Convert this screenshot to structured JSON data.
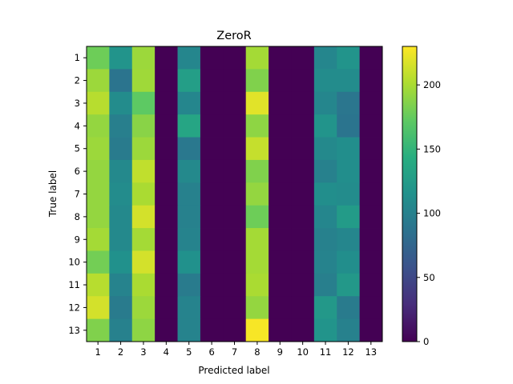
{
  "chart_data": {
    "type": "heatmap",
    "title": "ZeroR",
    "xlabel": "Predicted label",
    "ylabel": "True label",
    "x_categories": [
      "1",
      "2",
      "3",
      "4",
      "5",
      "6",
      "7",
      "8",
      "9",
      "10",
      "11",
      "12",
      "13"
    ],
    "y_categories": [
      "1",
      "2",
      "3",
      "4",
      "5",
      "6",
      "7",
      "8",
      "9",
      "10",
      "11",
      "12",
      "13"
    ],
    "colormap": "viridis",
    "value_range": [
      0,
      230
    ],
    "colorbar_ticks": [
      0,
      50,
      100,
      150,
      200
    ],
    "values": [
      [
        178,
        118,
        195,
        0,
        105,
        0,
        0,
        198,
        0,
        0,
        105,
        118,
        0
      ],
      [
        195,
        88,
        196,
        0,
        128,
        0,
        0,
        185,
        0,
        0,
        110,
        110,
        0
      ],
      [
        205,
        110,
        172,
        0,
        105,
        0,
        0,
        220,
        0,
        0,
        105,
        90,
        0
      ],
      [
        192,
        98,
        188,
        0,
        135,
        0,
        0,
        190,
        0,
        0,
        118,
        88,
        0
      ],
      [
        195,
        95,
        195,
        0,
        92,
        0,
        0,
        210,
        0,
        0,
        108,
        112,
        0
      ],
      [
        192,
        108,
        208,
        0,
        108,
        0,
        0,
        185,
        0,
        0,
        100,
        112,
        0
      ],
      [
        192,
        110,
        200,
        0,
        100,
        0,
        0,
        192,
        0,
        0,
        112,
        110,
        0
      ],
      [
        192,
        108,
        215,
        0,
        100,
        0,
        0,
        178,
        0,
        0,
        105,
        125,
        0
      ],
      [
        198,
        108,
        198,
        0,
        102,
        0,
        0,
        198,
        0,
        0,
        100,
        105,
        0
      ],
      [
        180,
        115,
        215,
        0,
        115,
        0,
        0,
        198,
        0,
        0,
        102,
        112,
        0
      ],
      [
        205,
        102,
        200,
        0,
        95,
        0,
        0,
        200,
        0,
        0,
        98,
        122,
        0
      ],
      [
        215,
        95,
        195,
        0,
        102,
        0,
        0,
        192,
        0,
        0,
        122,
        95,
        0
      ],
      [
        185,
        100,
        190,
        0,
        102,
        0,
        0,
        228,
        0,
        0,
        118,
        100,
        0
      ]
    ]
  }
}
